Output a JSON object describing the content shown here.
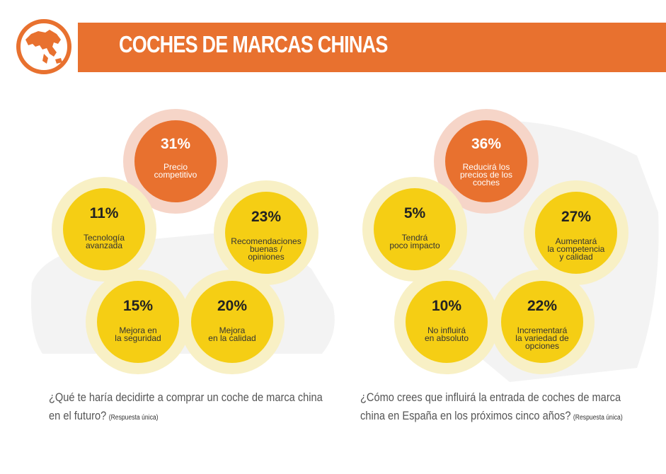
{
  "header": {
    "title": "COCHES DE MARCAS CHINAS",
    "icon": "globe-asia-icon",
    "accent_color": "#e8712f"
  },
  "colors": {
    "orange": "#e8712f",
    "orange_halo": "#f6d5c8",
    "yellow": "#f5ce14",
    "yellow_halo": "#f8f0c5",
    "car_silhouette": "#f2f2f2"
  },
  "chart_data": [
    {
      "type": "bubble",
      "question": "¿Qué te haría decidirte a comprar un coche de marca china en el futuro?",
      "note": "(Respuesta única)",
      "items": [
        {
          "value": 31,
          "value_label": "31%",
          "label": [
            "Precio",
            "competitivo"
          ],
          "highlight": true
        },
        {
          "value": 11,
          "value_label": "11%",
          "label": [
            "Tecnología",
            "avanzada"
          ],
          "highlight": false
        },
        {
          "value": 23,
          "value_label": "23%",
          "label": [
            "Recomendaciones",
            "buenas /",
            "opiniones"
          ],
          "highlight": false
        },
        {
          "value": 15,
          "value_label": "15%",
          "label": [
            "Mejora en",
            "la seguridad"
          ],
          "highlight": false
        },
        {
          "value": 20,
          "value_label": "20%",
          "label": [
            "Mejora",
            "en la calidad"
          ],
          "highlight": false
        }
      ]
    },
    {
      "type": "bubble",
      "question": "¿Cómo crees que influirá la entrada de coches de marca china en España en los próximos cinco años?",
      "note": "(Respuesta única)",
      "items": [
        {
          "value": 36,
          "value_label": "36%",
          "label": [
            "Reducirá los",
            "precios de los",
            "coches"
          ],
          "highlight": true
        },
        {
          "value": 5,
          "value_label": "5%",
          "label": [
            "Tendrá",
            "poco impacto"
          ],
          "highlight": false
        },
        {
          "value": 27,
          "value_label": "27%",
          "label": [
            "Aumentará",
            "la competencia",
            "y calidad"
          ],
          "highlight": false
        },
        {
          "value": 10,
          "value_label": "10%",
          "label": [
            "No influirá",
            "en absoluto"
          ],
          "highlight": false
        },
        {
          "value": 22,
          "value_label": "22%",
          "label": [
            "Incrementará",
            "la variedad de",
            "opciones"
          ],
          "highlight": false
        }
      ]
    }
  ]
}
